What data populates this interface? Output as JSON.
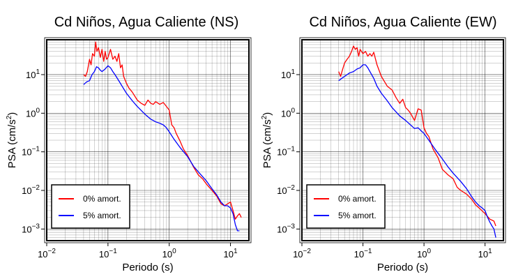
{
  "chart_data": [
    {
      "type": "line",
      "title": "Cd Niños, Agua Caliente (NS)",
      "xlabel": "Periodo (s)",
      "ylabel_prefix": "PSA (cm/s",
      "ylabel_sup": "2",
      "ylabel_suffix": ")",
      "xscale": "log",
      "yscale": "log",
      "xlim": [
        0.01,
        20
      ],
      "ylim": [
        0.0005,
        80
      ],
      "x_ticks": [
        {
          "value": 0.01,
          "base": "10",
          "exp": "−2"
        },
        {
          "value": 0.1,
          "base": "10",
          "exp": "−1"
        },
        {
          "value": 1,
          "base": "10",
          "exp": "0"
        },
        {
          "value": 10,
          "base": "10",
          "exp": "1"
        }
      ],
      "y_ticks": [
        {
          "value": 0.001,
          "base": "10",
          "exp": "−3"
        },
        {
          "value": 0.01,
          "base": "10",
          "exp": "−2"
        },
        {
          "value": 0.1,
          "base": "10",
          "exp": "−1"
        },
        {
          "value": 1,
          "base": "10",
          "exp": "0"
        },
        {
          "value": 10,
          "base": "10",
          "exp": "1"
        }
      ],
      "grid": true,
      "legend_position": "bottom-left",
      "series": [
        {
          "name": "0% amort.",
          "color": "#ff0000",
          "x": [
            0.04,
            0.043,
            0.046,
            0.05,
            0.053,
            0.056,
            0.06,
            0.063,
            0.066,
            0.07,
            0.075,
            0.08,
            0.085,
            0.09,
            0.095,
            0.1,
            0.11,
            0.12,
            0.13,
            0.14,
            0.15,
            0.16,
            0.17,
            0.18,
            0.2,
            0.22,
            0.25,
            0.3,
            0.35,
            0.4,
            0.45,
            0.5,
            0.55,
            0.6,
            0.7,
            0.8,
            0.9,
            1.0,
            1.1,
            1.2,
            1.3,
            1.5,
            1.7,
            2.0,
            2.5,
            3.0,
            3.5,
            4.0,
            4.5,
            5.0,
            6.0,
            7.0,
            8.0,
            9.0,
            10,
            11,
            12,
            13,
            14,
            15
          ],
          "y": [
            10,
            9,
            12,
            25,
            18,
            35,
            30,
            70,
            40,
            50,
            28,
            45,
            22,
            40,
            25,
            28,
            45,
            25,
            30,
            22,
            35,
            15,
            18,
            9,
            6,
            4.5,
            3.5,
            2.2,
            1.8,
            1.6,
            2.2,
            1.8,
            1.7,
            2.0,
            1.7,
            1.9,
            1.5,
            1.2,
            0.5,
            0.42,
            0.3,
            0.19,
            0.12,
            0.08,
            0.04,
            0.025,
            0.02,
            0.015,
            0.012,
            0.01,
            0.007,
            0.0045,
            0.004,
            0.0045,
            0.005,
            0.003,
            0.0018,
            0.0022,
            0.0025,
            0.002
          ]
        },
        {
          "name": "5% amort.",
          "color": "#0000ff",
          "x": [
            0.04,
            0.045,
            0.05,
            0.055,
            0.06,
            0.065,
            0.07,
            0.075,
            0.08,
            0.09,
            0.1,
            0.11,
            0.12,
            0.13,
            0.15,
            0.17,
            0.2,
            0.25,
            0.3,
            0.4,
            0.5,
            0.6,
            0.7,
            0.8,
            0.9,
            1.0,
            1.2,
            1.5,
            2.0,
            2.5,
            3.0,
            4.0,
            5.0,
            6.0,
            7.0,
            8.0,
            9.0,
            10,
            11,
            12,
            13,
            14
          ],
          "y": [
            5.5,
            6.5,
            7,
            10,
            12,
            16,
            15,
            13,
            12,
            14,
            17,
            15,
            12,
            10,
            7,
            5,
            3.3,
            2.1,
            1.5,
            0.95,
            0.7,
            0.6,
            0.55,
            0.5,
            0.42,
            0.33,
            0.21,
            0.13,
            0.075,
            0.042,
            0.03,
            0.018,
            0.011,
            0.0075,
            0.005,
            0.004,
            0.004,
            0.0035,
            0.0025,
            0.0013,
            0.0009,
            0.0009
          ]
        }
      ]
    },
    {
      "type": "line",
      "title": "Cd Niños, Agua Caliente (EW)",
      "xlabel": "Periodo (s)",
      "ylabel_prefix": "PSA (cm/s",
      "ylabel_sup": "2",
      "ylabel_suffix": ")",
      "xscale": "log",
      "yscale": "log",
      "xlim": [
        0.01,
        20
      ],
      "ylim": [
        0.0005,
        80
      ],
      "x_ticks": [
        {
          "value": 0.01,
          "base": "10",
          "exp": "−2"
        },
        {
          "value": 0.1,
          "base": "10",
          "exp": "−1"
        },
        {
          "value": 1,
          "base": "10",
          "exp": "0"
        },
        {
          "value": 10,
          "base": "10",
          "exp": "1"
        }
      ],
      "y_ticks": [
        {
          "value": 0.001,
          "base": "10",
          "exp": "−3"
        },
        {
          "value": 0.01,
          "base": "10",
          "exp": "−2"
        },
        {
          "value": 0.1,
          "base": "10",
          "exp": "−1"
        },
        {
          "value": 1,
          "base": "10",
          "exp": "0"
        },
        {
          "value": 10,
          "base": "10",
          "exp": "1"
        }
      ],
      "grid": true,
      "legend_position": "bottom-left",
      "series": [
        {
          "name": "0% amort.",
          "color": "#ff0000",
          "x": [
            0.04,
            0.043,
            0.046,
            0.05,
            0.055,
            0.06,
            0.065,
            0.07,
            0.075,
            0.08,
            0.085,
            0.09,
            0.1,
            0.11,
            0.12,
            0.13,
            0.14,
            0.15,
            0.17,
            0.2,
            0.25,
            0.3,
            0.35,
            0.4,
            0.45,
            0.5,
            0.55,
            0.6,
            0.7,
            0.8,
            0.9,
            1.0,
            1.1,
            1.2,
            1.4,
            1.7,
            2.0,
            2.5,
            3.0,
            3.5,
            4.0,
            5.0,
            6.0,
            7.0,
            8.0,
            10,
            12,
            14,
            15
          ],
          "y": [
            12,
            9,
            13,
            20,
            25,
            30,
            40,
            55,
            45,
            50,
            30,
            45,
            35,
            40,
            30,
            35,
            30,
            38,
            18,
            9,
            5,
            4,
            2.5,
            1.8,
            2.3,
            1.4,
            1.2,
            1.0,
            0.65,
            1.3,
            1.2,
            0.42,
            0.3,
            0.25,
            0.12,
            0.07,
            0.035,
            0.025,
            0.02,
            0.012,
            0.01,
            0.008,
            0.006,
            0.0042,
            0.0035,
            0.0025,
            0.0018,
            0.0016,
            0.0012
          ]
        },
        {
          "name": "5% amort.",
          "color": "#0000ff",
          "x": [
            0.04,
            0.045,
            0.05,
            0.055,
            0.06,
            0.07,
            0.08,
            0.09,
            0.1,
            0.11,
            0.12,
            0.13,
            0.15,
            0.17,
            0.2,
            0.25,
            0.3,
            0.4,
            0.5,
            0.6,
            0.7,
            0.8,
            0.9,
            1.0,
            1.2,
            1.5,
            2.0,
            2.5,
            3.0,
            4.0,
            5.0,
            6.0,
            7.0,
            8.0,
            9.0,
            10,
            11,
            12,
            13,
            14,
            15
          ],
          "y": [
            7,
            8,
            9,
            10,
            11,
            12,
            14,
            15,
            18,
            18,
            15,
            12,
            8,
            5,
            3.3,
            2.1,
            1.4,
            0.85,
            0.65,
            0.5,
            0.4,
            0.42,
            0.35,
            0.3,
            0.2,
            0.12,
            0.065,
            0.04,
            0.028,
            0.017,
            0.011,
            0.007,
            0.005,
            0.004,
            0.0035,
            0.003,
            0.002,
            0.0015,
            0.0012,
            0.001,
            0.0006
          ]
        }
      ]
    }
  ]
}
